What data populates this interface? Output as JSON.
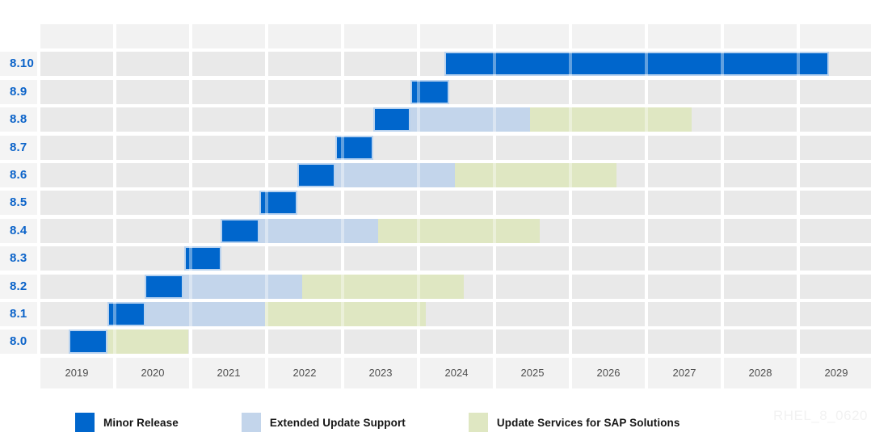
{
  "watermark": "RHEL_8_0620",
  "colors": {
    "minor": "#0066cc",
    "minor_border": "#b9d2ee",
    "eus": "#c3d5eb",
    "sap": "#dfe7c2",
    "row_stripe": "#e9e9e9",
    "label_cell": "#f4f4f4",
    "spacer_stripe": "#f2f2f2",
    "row_label_text": "#0b63c9",
    "axis_text": "#4f4f4f",
    "legend_text": "#151515",
    "watermark_text": "#f2f2f2"
  },
  "chart_data": {
    "type": "bar",
    "subtype": "horizontal-gantt-timeline",
    "x_axis": {
      "range_start": 2019,
      "range_end": 2029.96,
      "ticks": [
        "2019",
        "2020",
        "2021",
        "2022",
        "2023",
        "2024",
        "2025",
        "2026",
        "2027",
        "2028",
        "2029"
      ],
      "gridlines": true
    },
    "y_axis_rows": [
      "8.10",
      "8.9",
      "8.8",
      "8.7",
      "8.6",
      "8.5",
      "8.4",
      "8.3",
      "8.2",
      "8.1",
      "8.0"
    ],
    "legend": [
      {
        "kind": "minor",
        "label": "Minor Release"
      },
      {
        "kind": "eus",
        "label": "Extended Update Support"
      },
      {
        "kind": "sap",
        "label": "Update Services for SAP Solutions"
      }
    ],
    "rows": [
      {
        "label": "8.10",
        "segments": [
          {
            "kind": "minor",
            "start": 2024.34,
            "end": 2029.4
          }
        ]
      },
      {
        "label": "8.9",
        "segments": [
          {
            "kind": "minor",
            "start": 2023.89,
            "end": 2024.4
          }
        ]
      },
      {
        "label": "8.8",
        "segments": [
          {
            "kind": "minor",
            "start": 2023.4,
            "end": 2023.89
          },
          {
            "kind": "eus",
            "start": 2023.89,
            "end": 2025.47
          },
          {
            "kind": "sap",
            "start": 2025.47,
            "end": 2027.6
          }
        ]
      },
      {
        "label": "8.7",
        "segments": [
          {
            "kind": "minor",
            "start": 2022.9,
            "end": 2023.4
          }
        ]
      },
      {
        "label": "8.6",
        "segments": [
          {
            "kind": "minor",
            "start": 2022.4,
            "end": 2022.9
          },
          {
            "kind": "eus",
            "start": 2022.9,
            "end": 2024.48
          },
          {
            "kind": "sap",
            "start": 2024.48,
            "end": 2026.61
          }
        ]
      },
      {
        "label": "8.5",
        "segments": [
          {
            "kind": "minor",
            "start": 2021.9,
            "end": 2022.4
          }
        ]
      },
      {
        "label": "8.4",
        "segments": [
          {
            "kind": "minor",
            "start": 2021.39,
            "end": 2021.9
          },
          {
            "kind": "eus",
            "start": 2021.9,
            "end": 2023.47
          },
          {
            "kind": "sap",
            "start": 2023.47,
            "end": 2025.6
          }
        ]
      },
      {
        "label": "8.3",
        "segments": [
          {
            "kind": "minor",
            "start": 2020.91,
            "end": 2021.4
          }
        ]
      },
      {
        "label": "8.2",
        "segments": [
          {
            "kind": "minor",
            "start": 2020.39,
            "end": 2020.9
          },
          {
            "kind": "eus",
            "start": 2020.9,
            "end": 2022.47
          },
          {
            "kind": "sap",
            "start": 2022.47,
            "end": 2024.6
          }
        ]
      },
      {
        "label": "8.1",
        "segments": [
          {
            "kind": "minor",
            "start": 2019.9,
            "end": 2020.4
          },
          {
            "kind": "eus",
            "start": 2020.4,
            "end": 2021.98
          },
          {
            "kind": "sap",
            "start": 2021.98,
            "end": 2024.1
          }
        ]
      },
      {
        "label": "8.0",
        "segments": [
          {
            "kind": "minor",
            "start": 2019.39,
            "end": 2019.9
          },
          {
            "kind": "sap",
            "start": 2019.9,
            "end": 2020.97
          }
        ]
      }
    ]
  }
}
